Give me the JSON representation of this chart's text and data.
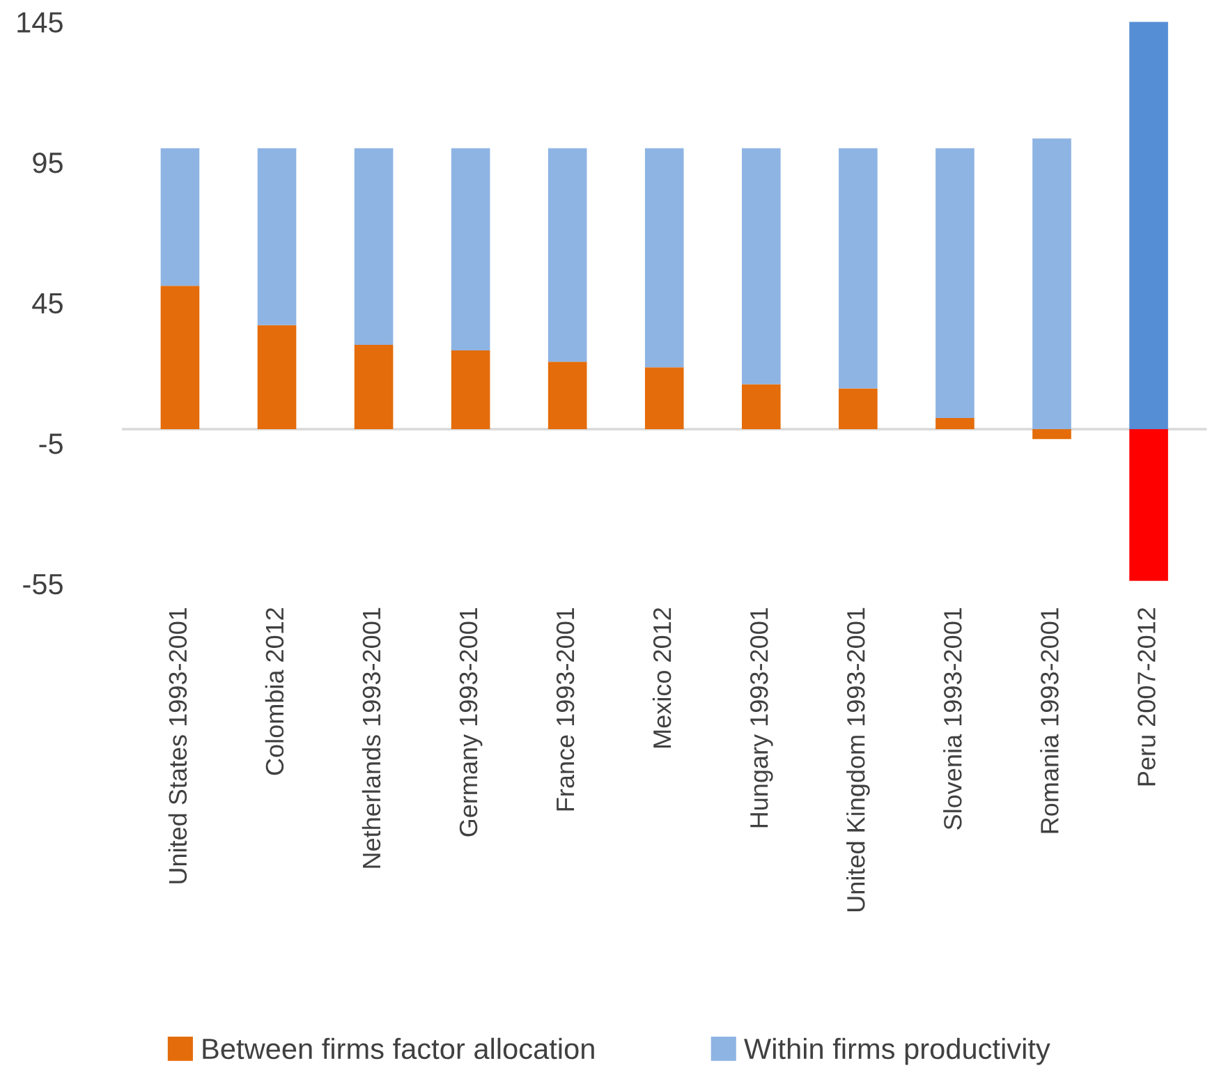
{
  "chart_data": {
    "type": "bar",
    "stacked": true,
    "categories": [
      "United States 1993-2001",
      "Colombia 2012",
      "Netherlands 1993-2001",
      "Germany 1993-2001",
      "France 1993-2001",
      "Mexico 2012",
      "Hungary 1993-2001",
      "United Kingdom 1993-2001",
      "Slovenia 1993-2001",
      "Romania 1993-2001",
      "Peru 2007-2012"
    ],
    "series": [
      {
        "name": "Between firms factor allocation",
        "color": "#e46c0a",
        "colors": [
          "#e46c0a",
          "#e46c0a",
          "#e46c0a",
          "#e46c0a",
          "#e46c0a",
          "#e46c0a",
          "#e46c0a",
          "#e46c0a",
          "#e46c0a",
          "#e46c0a",
          "#ff0000"
        ],
        "values": [
          51,
          37,
          30,
          28,
          24,
          22,
          16,
          14.5,
          4,
          -3.5,
          -54
        ]
      },
      {
        "name": "Within firms productivity",
        "color": "#8eb4e3",
        "colors": [
          "#8eb4e3",
          "#8eb4e3",
          "#8eb4e3",
          "#8eb4e3",
          "#8eb4e3",
          "#8eb4e3",
          "#8eb4e3",
          "#8eb4e3",
          "#8eb4e3",
          "#8eb4e3",
          "#558ed5"
        ],
        "values": [
          49,
          63,
          70,
          72,
          76,
          78,
          84,
          85.5,
          96,
          103.5,
          145
        ]
      }
    ],
    "ylim": [
      -55,
      145
    ],
    "yticks": [
      -55,
      -5,
      45,
      95,
      145
    ],
    "grid": false,
    "legend": "bottom"
  }
}
